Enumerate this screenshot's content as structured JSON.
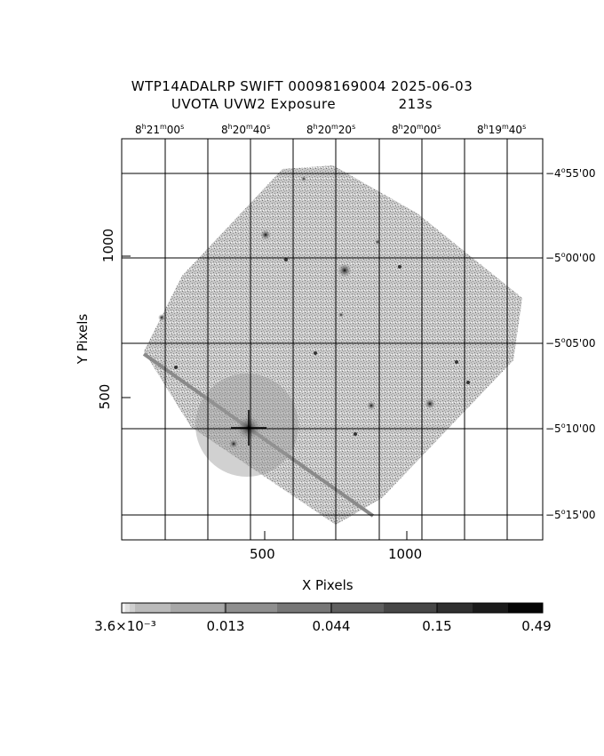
{
  "header": {
    "line1": "WTP14ADALRP SWIFT 00098169004 2025-06-03",
    "line2_left": "UVOTA UVW2 Exposure",
    "line2_right": "213s"
  },
  "axes": {
    "xlabel": "X Pixels",
    "ylabel": "Y Pixels",
    "x_ticks": [
      "500",
      "1000"
    ],
    "y_ticks": [
      "500",
      "1000"
    ]
  },
  "ra_labels": [
    {
      "h": "8",
      "m": "21",
      "s": "00"
    },
    {
      "h": "8",
      "m": "20",
      "s": "40"
    },
    {
      "h": "8",
      "m": "20",
      "s": "20"
    },
    {
      "h": "8",
      "m": "20",
      "s": "00"
    },
    {
      "h": "8",
      "m": "19",
      "s": "40"
    }
  ],
  "dec_labels": [
    {
      "d": "−4",
      "m": "55",
      "s": "00"
    },
    {
      "d": "−5",
      "m": "00",
      "s": "00"
    },
    {
      "d": "−5",
      "m": "05",
      "s": "00"
    },
    {
      "d": "−5",
      "m": "10",
      "s": "00"
    },
    {
      "d": "−5",
      "m": "15",
      "s": "00"
    }
  ],
  "colorbar": {
    "labels": [
      "3.6×10⁻³",
      "0.013",
      "0.044",
      "0.15",
      "0.49"
    ]
  }
}
